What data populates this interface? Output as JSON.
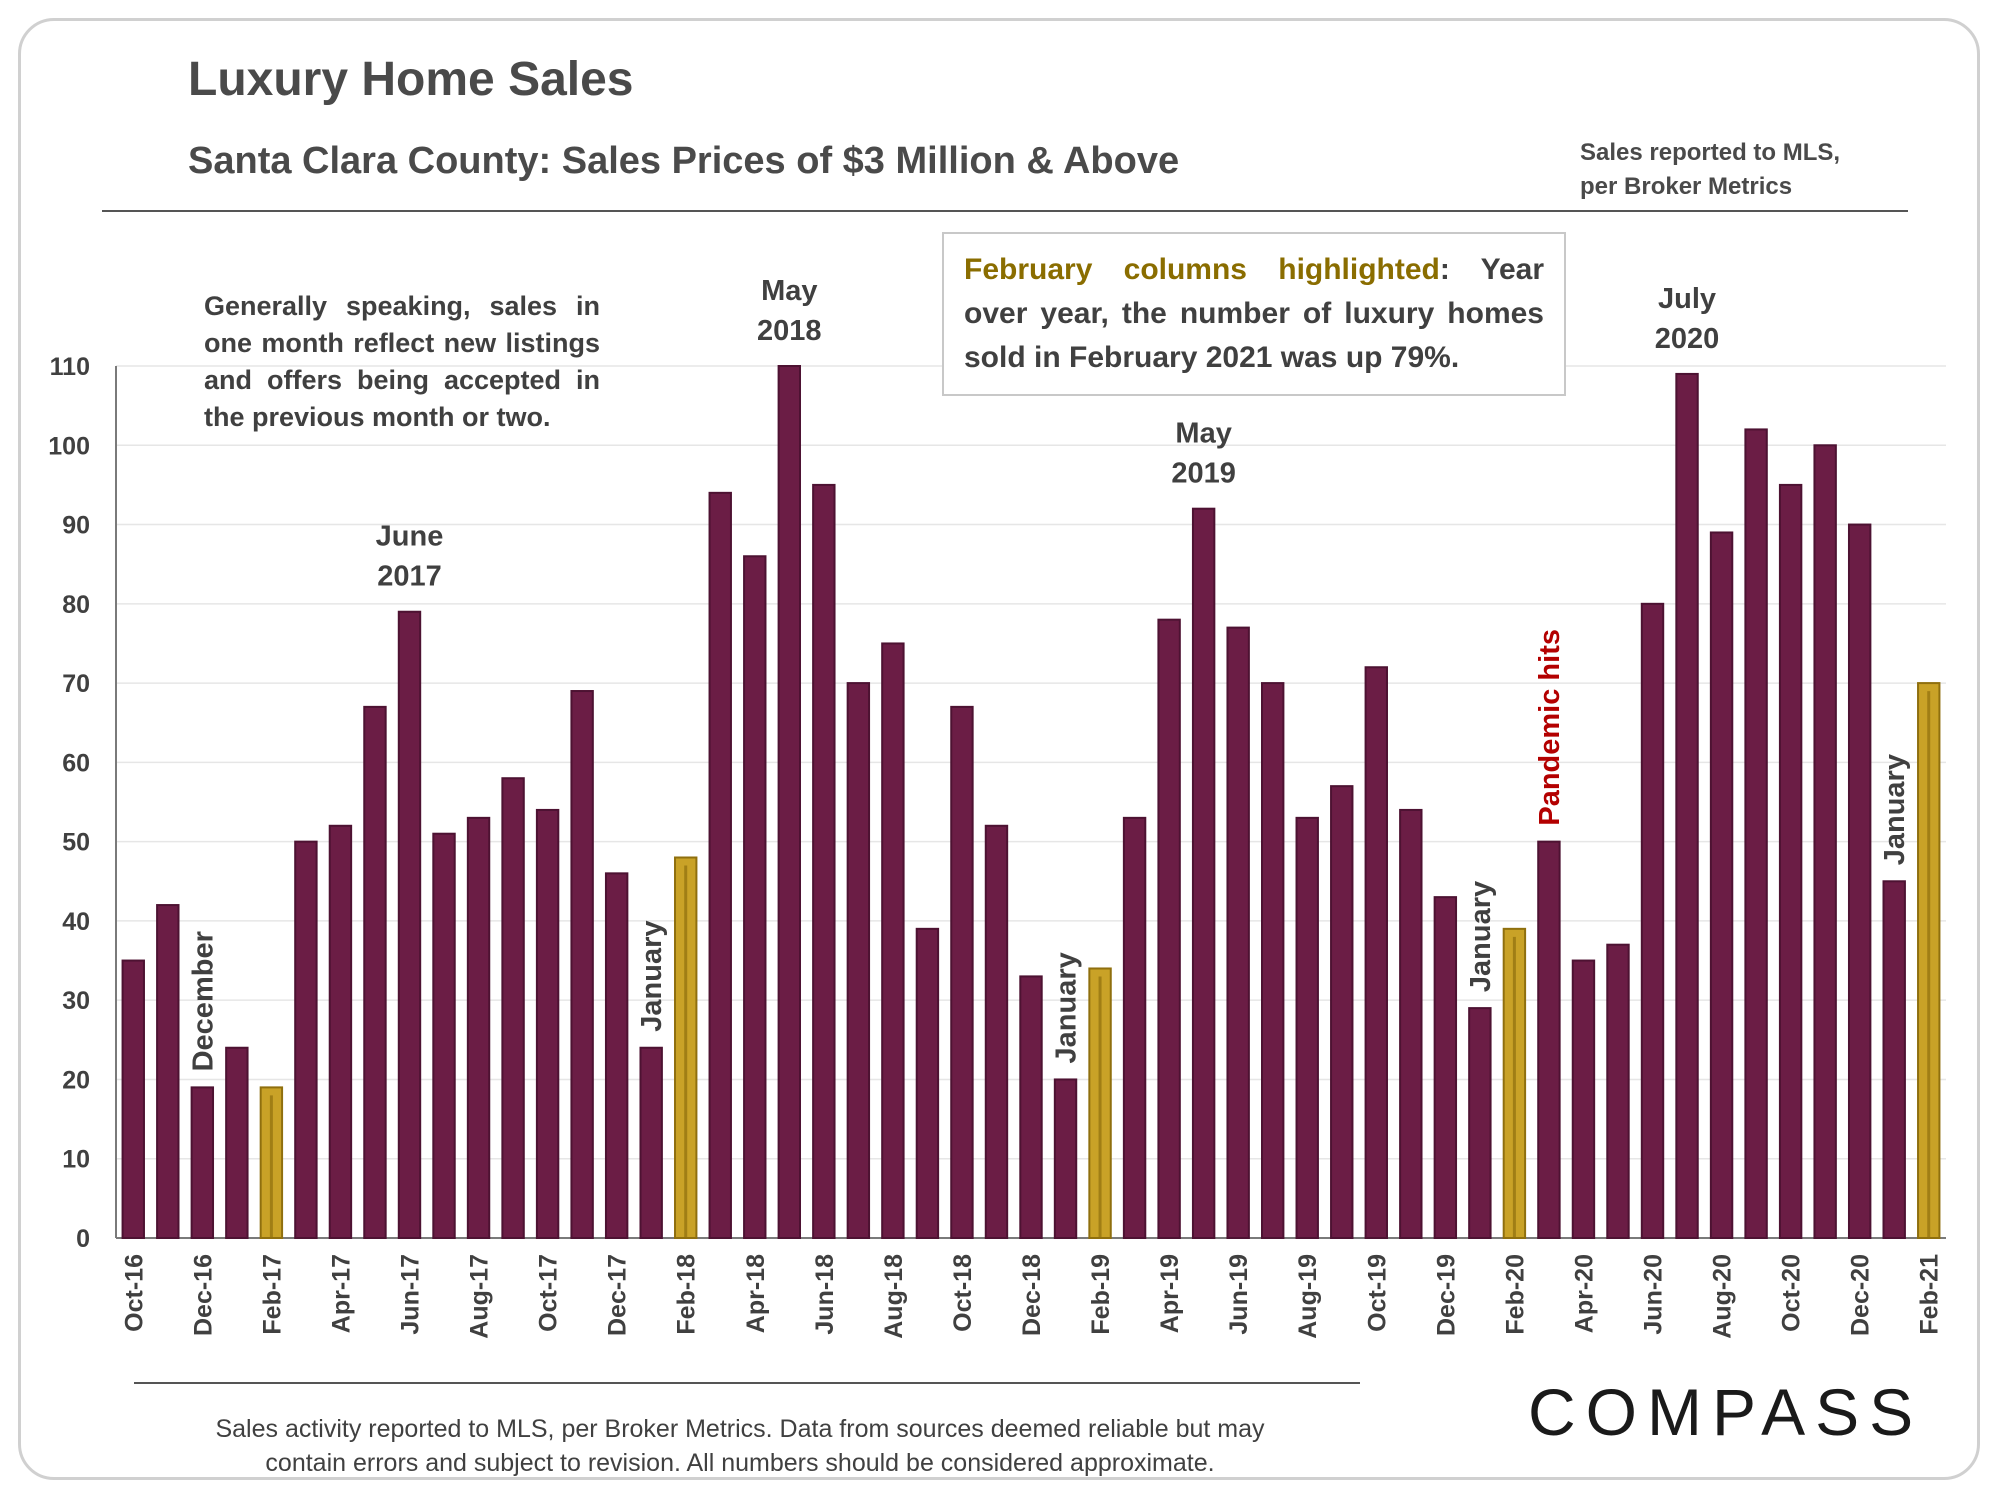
{
  "header": {
    "title": "Luxury Home Sales",
    "subtitle": "Santa Clara County: Sales Prices of $3 Million & Above",
    "source_line1": "Sales reported to MLS,",
    "source_line2": "per Broker Metrics"
  },
  "notes": {
    "left": "Generally speaking, sales in one month reflect new listings and offers being accepted in the previous month or two.",
    "box_highlight": "February columns highlighted",
    "box_rest": ": Year over year, the number of luxury homes sold in February 2021 was up 79%."
  },
  "footer": {
    "line1": "Sales activity reported to MLS, per Broker Metrics. Data from sources deemed reliable but may",
    "line2": "contain errors and subject to revision. All numbers should be considered approximate."
  },
  "logo": {
    "text": "COMPASS"
  },
  "colors": {
    "bar": "#6b1d45",
    "bar_stroke": "#4d1232",
    "highlight": "#c9a227",
    "highlight_stroke": "#8f6f0e",
    "grid": "#e6e6e6",
    "axis": "#7a7a7a",
    "text": "#404040",
    "pandemic": "#b30000"
  },
  "chart_data": {
    "type": "bar",
    "ylim": [
      0,
      110
    ],
    "yticks": [
      0,
      10,
      20,
      30,
      40,
      50,
      60,
      70,
      80,
      90,
      100,
      110
    ],
    "grid": true,
    "categories": [
      "Oct-16",
      "Nov-16",
      "Dec-16",
      "Jan-17",
      "Feb-17",
      "Mar-17",
      "Apr-17",
      "May-17",
      "Jun-17",
      "Jul-17",
      "Aug-17",
      "Sep-17",
      "Oct-17",
      "Nov-17",
      "Dec-17",
      "Jan-18",
      "Feb-18",
      "Mar-18",
      "Apr-18",
      "May-18",
      "Jun-18",
      "Jul-18",
      "Aug-18",
      "Sep-18",
      "Oct-18",
      "Nov-18",
      "Dec-18",
      "Jan-19",
      "Feb-19",
      "Mar-19",
      "Apr-19",
      "May-19",
      "Jun-19",
      "Jul-19",
      "Aug-19",
      "Sep-19",
      "Oct-19",
      "Nov-19",
      "Dec-19",
      "Jan-20",
      "Feb-20",
      "Mar-20",
      "Apr-20",
      "May-20",
      "Jun-20",
      "Jul-20",
      "Aug-20",
      "Sep-20",
      "Oct-20",
      "Nov-20",
      "Dec-20",
      "Jan-21",
      "Feb-21"
    ],
    "tick_labels": [
      "Oct-16",
      "",
      "Dec-16",
      "",
      "Feb-17",
      "",
      "Apr-17",
      "",
      "Jun-17",
      "",
      "Aug-17",
      "",
      "Oct-17",
      "",
      "Dec-17",
      "",
      "Feb-18",
      "",
      "Apr-18",
      "",
      "Jun-18",
      "",
      "Aug-18",
      "",
      "Oct-18",
      "",
      "Dec-18",
      "",
      "Feb-19",
      "",
      "Apr-19",
      "",
      "Jun-19",
      "",
      "Aug-19",
      "",
      "Oct-19",
      "",
      "Dec-19",
      "",
      "Feb-20",
      "",
      "Apr-20",
      "",
      "Jun-20",
      "",
      "Aug-20",
      "",
      "Oct-20",
      "",
      "Dec-20",
      "",
      "Feb-21"
    ],
    "values": [
      35,
      42,
      19,
      24,
      19,
      50,
      52,
      67,
      79,
      51,
      53,
      58,
      54,
      69,
      46,
      24,
      48,
      94,
      86,
      110,
      95,
      70,
      75,
      39,
      67,
      52,
      33,
      20,
      34,
      53,
      78,
      92,
      77,
      70,
      53,
      57,
      72,
      54,
      43,
      29,
      39,
      50,
      35,
      37,
      80,
      109,
      89,
      102,
      95,
      100,
      90,
      45,
      70
    ],
    "highlighted": [
      "Feb-17",
      "Feb-18",
      "Feb-19",
      "Feb-20",
      "Feb-21"
    ],
    "annotations": [
      {
        "text": "December",
        "at": "Dec-16",
        "vertical": true
      },
      {
        "text": "June",
        "text2": "2017",
        "at": "Jun-17",
        "vertical": false
      },
      {
        "text": "January",
        "at": "Jan-18",
        "vertical": true
      },
      {
        "text": "May",
        "text2": "2018",
        "at": "May-18",
        "vertical": false
      },
      {
        "text": "January",
        "at": "Jan-19",
        "vertical": true
      },
      {
        "text": "May",
        "text2": "2019",
        "at": "May-19",
        "vertical": false
      },
      {
        "text": "January",
        "at": "Jan-20",
        "vertical": true
      },
      {
        "text": "Pandemic hits",
        "at": "Mar-20",
        "vertical": true,
        "color": "pandemic"
      },
      {
        "text": "July",
        "text2": "2020",
        "at": "Jul-20",
        "vertical": false
      },
      {
        "text": "January",
        "at": "Jan-21",
        "vertical": true
      }
    ]
  }
}
